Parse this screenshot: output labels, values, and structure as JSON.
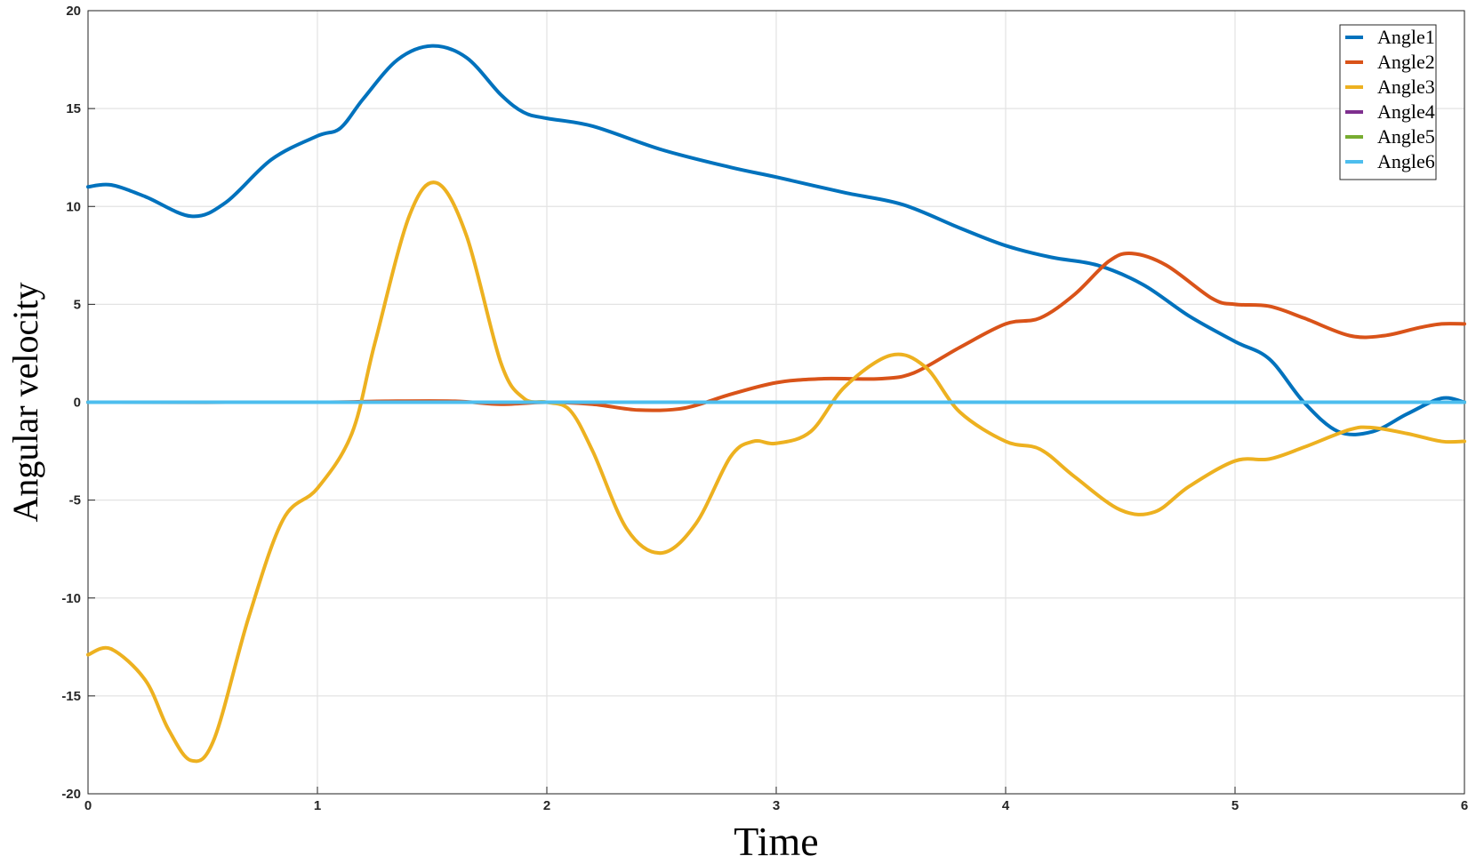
{
  "chart_data": {
    "type": "line",
    "xlabel": "Time",
    "ylabel": "Angular velocity",
    "xlim": [
      0,
      6
    ],
    "ylim": [
      -20,
      20
    ],
    "xticks": [
      "0",
      "1",
      "2",
      "3",
      "4",
      "5",
      "6"
    ],
    "yticks": [
      "-20",
      "-15",
      "-10",
      "-5",
      "0",
      "5",
      "10",
      "15",
      "20"
    ],
    "grid": true,
    "legend_position": "top-right",
    "series": [
      {
        "name": "Angle1",
        "color": "#0072BD",
        "points": [
          [
            0,
            11
          ],
          [
            0.1,
            11.1
          ],
          [
            0.25,
            10.5
          ],
          [
            0.45,
            9.5
          ],
          [
            0.6,
            10.2
          ],
          [
            0.8,
            12.4
          ],
          [
            1.0,
            13.6
          ],
          [
            1.1,
            14.0
          ],
          [
            1.2,
            15.5
          ],
          [
            1.35,
            17.5
          ],
          [
            1.5,
            18.2
          ],
          [
            1.65,
            17.6
          ],
          [
            1.8,
            15.7
          ],
          [
            1.9,
            14.8
          ],
          [
            2.0,
            14.5
          ],
          [
            2.2,
            14.1
          ],
          [
            2.5,
            12.9
          ],
          [
            2.8,
            12.0
          ],
          [
            3.0,
            11.5
          ],
          [
            3.3,
            10.7
          ],
          [
            3.55,
            10.1
          ],
          [
            3.8,
            8.9
          ],
          [
            4.0,
            8.0
          ],
          [
            4.2,
            7.4
          ],
          [
            4.4,
            7.0
          ],
          [
            4.6,
            6.0
          ],
          [
            4.8,
            4.4
          ],
          [
            5.0,
            3.1
          ],
          [
            5.15,
            2.2
          ],
          [
            5.3,
            0.0
          ],
          [
            5.45,
            -1.5
          ],
          [
            5.6,
            -1.5
          ],
          [
            5.75,
            -0.6
          ],
          [
            5.9,
            0.2
          ],
          [
            6.0,
            0.0
          ]
        ]
      },
      {
        "name": "Angle2",
        "color": "#D95319",
        "points": [
          [
            0,
            0
          ],
          [
            1.0,
            0
          ],
          [
            1.3,
            0.05
          ],
          [
            1.6,
            0.05
          ],
          [
            1.8,
            -0.1
          ],
          [
            2.0,
            0
          ],
          [
            2.2,
            -0.1
          ],
          [
            2.4,
            -0.4
          ],
          [
            2.6,
            -0.3
          ],
          [
            2.8,
            0.4
          ],
          [
            3.0,
            1.0
          ],
          [
            3.2,
            1.2
          ],
          [
            3.45,
            1.2
          ],
          [
            3.6,
            1.5
          ],
          [
            3.8,
            2.8
          ],
          [
            4.0,
            4.0
          ],
          [
            4.15,
            4.3
          ],
          [
            4.3,
            5.5
          ],
          [
            4.45,
            7.2
          ],
          [
            4.55,
            7.6
          ],
          [
            4.7,
            7.0
          ],
          [
            4.9,
            5.3
          ],
          [
            5.0,
            5.0
          ],
          [
            5.15,
            4.9
          ],
          [
            5.3,
            4.3
          ],
          [
            5.5,
            3.4
          ],
          [
            5.65,
            3.4
          ],
          [
            5.8,
            3.8
          ],
          [
            5.9,
            4.0
          ],
          [
            6.0,
            4.0
          ]
        ]
      },
      {
        "name": "Angle3",
        "color": "#EDB120",
        "points": [
          [
            0,
            -12.9
          ],
          [
            0.1,
            -12.6
          ],
          [
            0.25,
            -14.2
          ],
          [
            0.35,
            -16.7
          ],
          [
            0.45,
            -18.3
          ],
          [
            0.55,
            -17.2
          ],
          [
            0.7,
            -11.0
          ],
          [
            0.85,
            -6.0
          ],
          [
            1.0,
            -4.4
          ],
          [
            1.15,
            -1.6
          ],
          [
            1.25,
            3.0
          ],
          [
            1.4,
            9.5
          ],
          [
            1.52,
            11.2
          ],
          [
            1.65,
            8.5
          ],
          [
            1.8,
            2.0
          ],
          [
            1.9,
            0.2
          ],
          [
            2.0,
            0
          ],
          [
            2.1,
            -0.4
          ],
          [
            2.2,
            -2.5
          ],
          [
            2.35,
            -6.5
          ],
          [
            2.5,
            -7.7
          ],
          [
            2.65,
            -6.2
          ],
          [
            2.8,
            -2.8
          ],
          [
            2.9,
            -2.0
          ],
          [
            3.0,
            -2.1
          ],
          [
            3.15,
            -1.5
          ],
          [
            3.3,
            0.8
          ],
          [
            3.5,
            2.4
          ],
          [
            3.65,
            1.8
          ],
          [
            3.8,
            -0.5
          ],
          [
            4.0,
            -2.0
          ],
          [
            4.15,
            -2.4
          ],
          [
            4.3,
            -3.8
          ],
          [
            4.5,
            -5.5
          ],
          [
            4.65,
            -5.6
          ],
          [
            4.8,
            -4.3
          ],
          [
            5.0,
            -3.0
          ],
          [
            5.15,
            -2.9
          ],
          [
            5.3,
            -2.3
          ],
          [
            5.5,
            -1.4
          ],
          [
            5.6,
            -1.3
          ],
          [
            5.75,
            -1.6
          ],
          [
            5.9,
            -2.0
          ],
          [
            6.0,
            -2.0
          ]
        ]
      },
      {
        "name": "Angle4",
        "color": "#7E2F8E",
        "points": [
          [
            0,
            0
          ],
          [
            6,
            0
          ]
        ]
      },
      {
        "name": "Angle5",
        "color": "#77AC30",
        "points": [
          [
            0,
            0
          ],
          [
            6,
            0
          ]
        ]
      },
      {
        "name": "Angle6",
        "color": "#4DBEEE",
        "points": [
          [
            0,
            0
          ],
          [
            6,
            0
          ]
        ]
      }
    ]
  }
}
